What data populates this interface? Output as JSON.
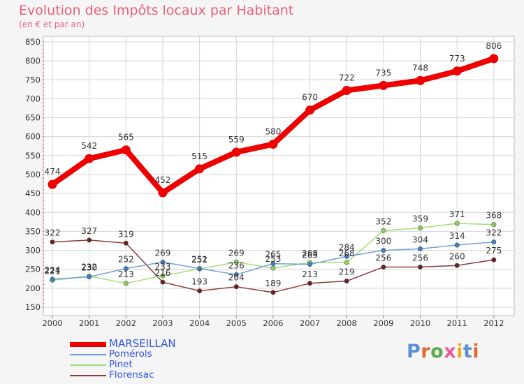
{
  "chart_data": {
    "type": "line",
    "title": "Evolution des Impôts locaux par Habitant",
    "subtitle": "(en € et par an)",
    "x": [
      "2000",
      "2001",
      "2002",
      "2003",
      "2004",
      "2005",
      "2006",
      "2007",
      "2008",
      "2009",
      "2010",
      "2011",
      "2012"
    ],
    "ylim": [
      150,
      850
    ],
    "yticks": [
      "150",
      "200",
      "250",
      "300",
      "350",
      "400",
      "450",
      "500",
      "550",
      "600",
      "650",
      "700",
      "750",
      "800",
      "850"
    ],
    "legend_position": "bottom-left",
    "grid": true,
    "series": [
      {
        "name": "MARSEILLAN",
        "color": "#ee0000",
        "primary": true,
        "values": [
          474,
          542,
          565,
          452,
          515,
          559,
          580,
          670,
          722,
          735,
          748,
          773,
          806
        ],
        "labels": [
          "474",
          "542",
          "565",
          "452",
          "515",
          "559",
          "580",
          "670",
          "722",
          "735",
          "748",
          "773",
          "806"
        ]
      },
      {
        "name": "Pomérols",
        "color": "#6fa0d4",
        "marker_color": "#3f7fc4",
        "values": [
          224,
          230,
          252,
          269,
          252,
          236,
          265,
          263,
          284,
          300,
          304,
          314,
          322
        ],
        "labels": [
          "224",
          "230",
          "252",
          "269",
          "252",
          "236",
          "265",
          "263",
          "284",
          "300",
          "304",
          "314",
          "322"
        ]
      },
      {
        "name": "Pinet",
        "color": "#a4dd78",
        "marker_color": "#8cd050",
        "values": [
          221,
          232,
          213,
          233,
          251,
          269,
          253,
          268,
          268,
          352,
          359,
          371,
          368
        ],
        "labels": [
          "221",
          "232",
          "213",
          "233",
          "251",
          "269",
          "253",
          "268",
          "268",
          "352",
          "359",
          "371",
          "368"
        ]
      },
      {
        "name": "Florensac",
        "color": "#8c3b3b",
        "marker_color": "#6b1f1f",
        "values": [
          322,
          327,
          319,
          216,
          193,
          204,
          189,
          213,
          219,
          256,
          256,
          260,
          275
        ],
        "labels": [
          "322",
          "327",
          "319",
          "216",
          "193",
          "204",
          "189",
          "213",
          "219",
          "256",
          "256",
          "260",
          "275"
        ]
      }
    ]
  },
  "logo": {
    "text": "Proxiti",
    "letter_colors": [
      "#5a8fd0",
      "#e06a30",
      "#5aaa4a",
      "#e85a9a",
      "#e8b020",
      "#5a8fd0",
      "#e06a30"
    ]
  }
}
